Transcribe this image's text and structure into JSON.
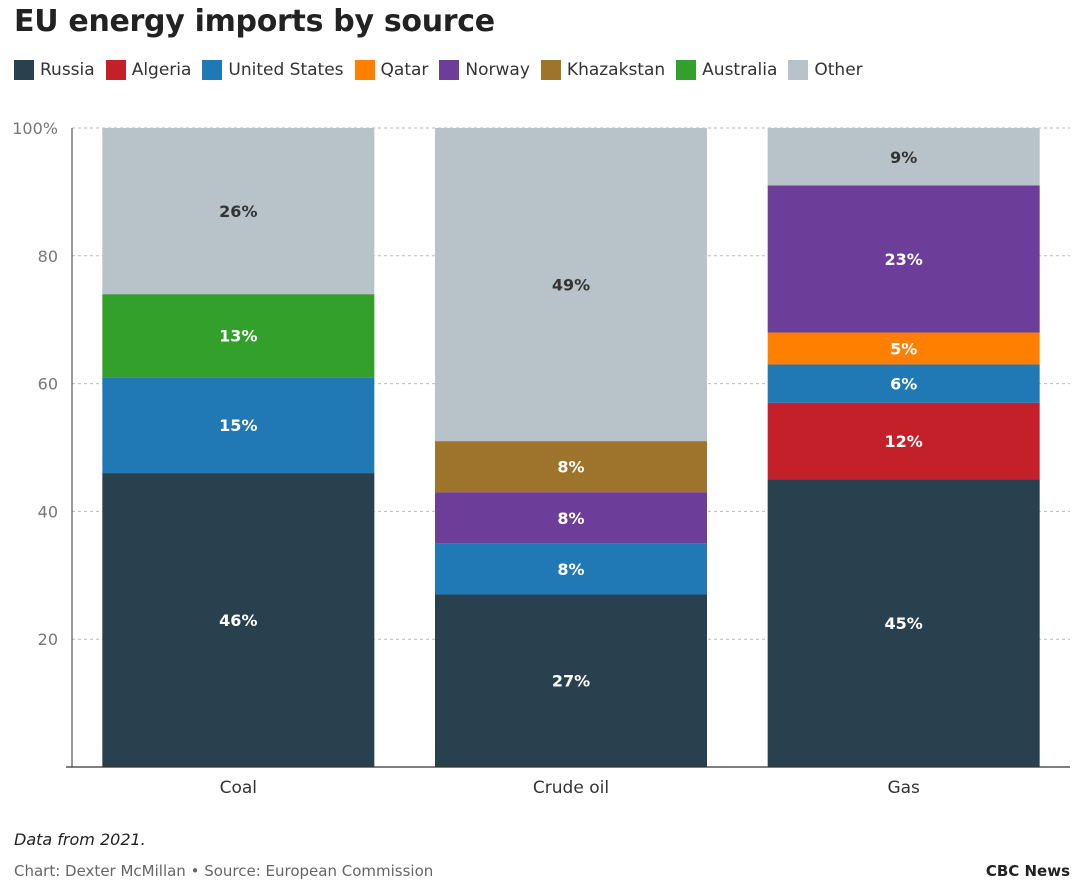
{
  "title": "EU energy imports by source",
  "note": "Data from 2021.",
  "credit": "Chart: Dexter McMillan • Source: European Commission",
  "brand": "CBC News",
  "legend": [
    {
      "name": "Russia",
      "color": "#29414f"
    },
    {
      "name": "Algeria",
      "color": "#c4202a"
    },
    {
      "name": "United States",
      "color": "#2078b4"
    },
    {
      "name": "Qatar",
      "color": "#ff8000"
    },
    {
      "name": "Norway",
      "color": "#6c3d99"
    },
    {
      "name": "Khazakstan",
      "color": "#9e732b"
    },
    {
      "name": "Australia",
      "color": "#33a02c"
    },
    {
      "name": "Other",
      "color": "#b8c3c9"
    }
  ],
  "chart_data": {
    "type": "bar",
    "stacked": true,
    "categories": [
      "Coal",
      "Crude oil",
      "Gas"
    ],
    "ylim": [
      0,
      100
    ],
    "yticks": [
      20,
      40,
      60,
      80,
      100
    ],
    "ytick_labels": [
      "20",
      "40",
      "60",
      "80",
      "100%"
    ],
    "grid": "horizontal dashed",
    "series": [
      {
        "name": "Russia",
        "color": "#29414f",
        "values": [
          46,
          27,
          45
        ]
      },
      {
        "name": "Algeria",
        "color": "#c4202a",
        "values": [
          0,
          0,
          12
        ]
      },
      {
        "name": "United States",
        "color": "#2078b4",
        "values": [
          15,
          8,
          6
        ]
      },
      {
        "name": "Qatar",
        "color": "#ff8000",
        "values": [
          0,
          0,
          5
        ]
      },
      {
        "name": "Norway",
        "color": "#6c3d99",
        "values": [
          0,
          8,
          23
        ]
      },
      {
        "name": "Khazakstan",
        "color": "#9e732b",
        "values": [
          0,
          8,
          0
        ]
      },
      {
        "name": "Australia",
        "color": "#33a02c",
        "values": [
          13,
          0,
          0
        ]
      },
      {
        "name": "Other",
        "color": "#b8c3c9",
        "values": [
          26,
          49,
          9
        ]
      }
    ],
    "data_labels": [
      [
        "46%",
        "",
        "15%",
        "",
        "",
        "",
        "13%",
        "26%"
      ],
      [
        "27%",
        "",
        "8%",
        "",
        "8%",
        "8%",
        "",
        "49%"
      ],
      [
        "45%",
        "12%",
        "6%",
        "5%",
        "23%",
        "",
        "",
        "9%"
      ]
    ]
  }
}
